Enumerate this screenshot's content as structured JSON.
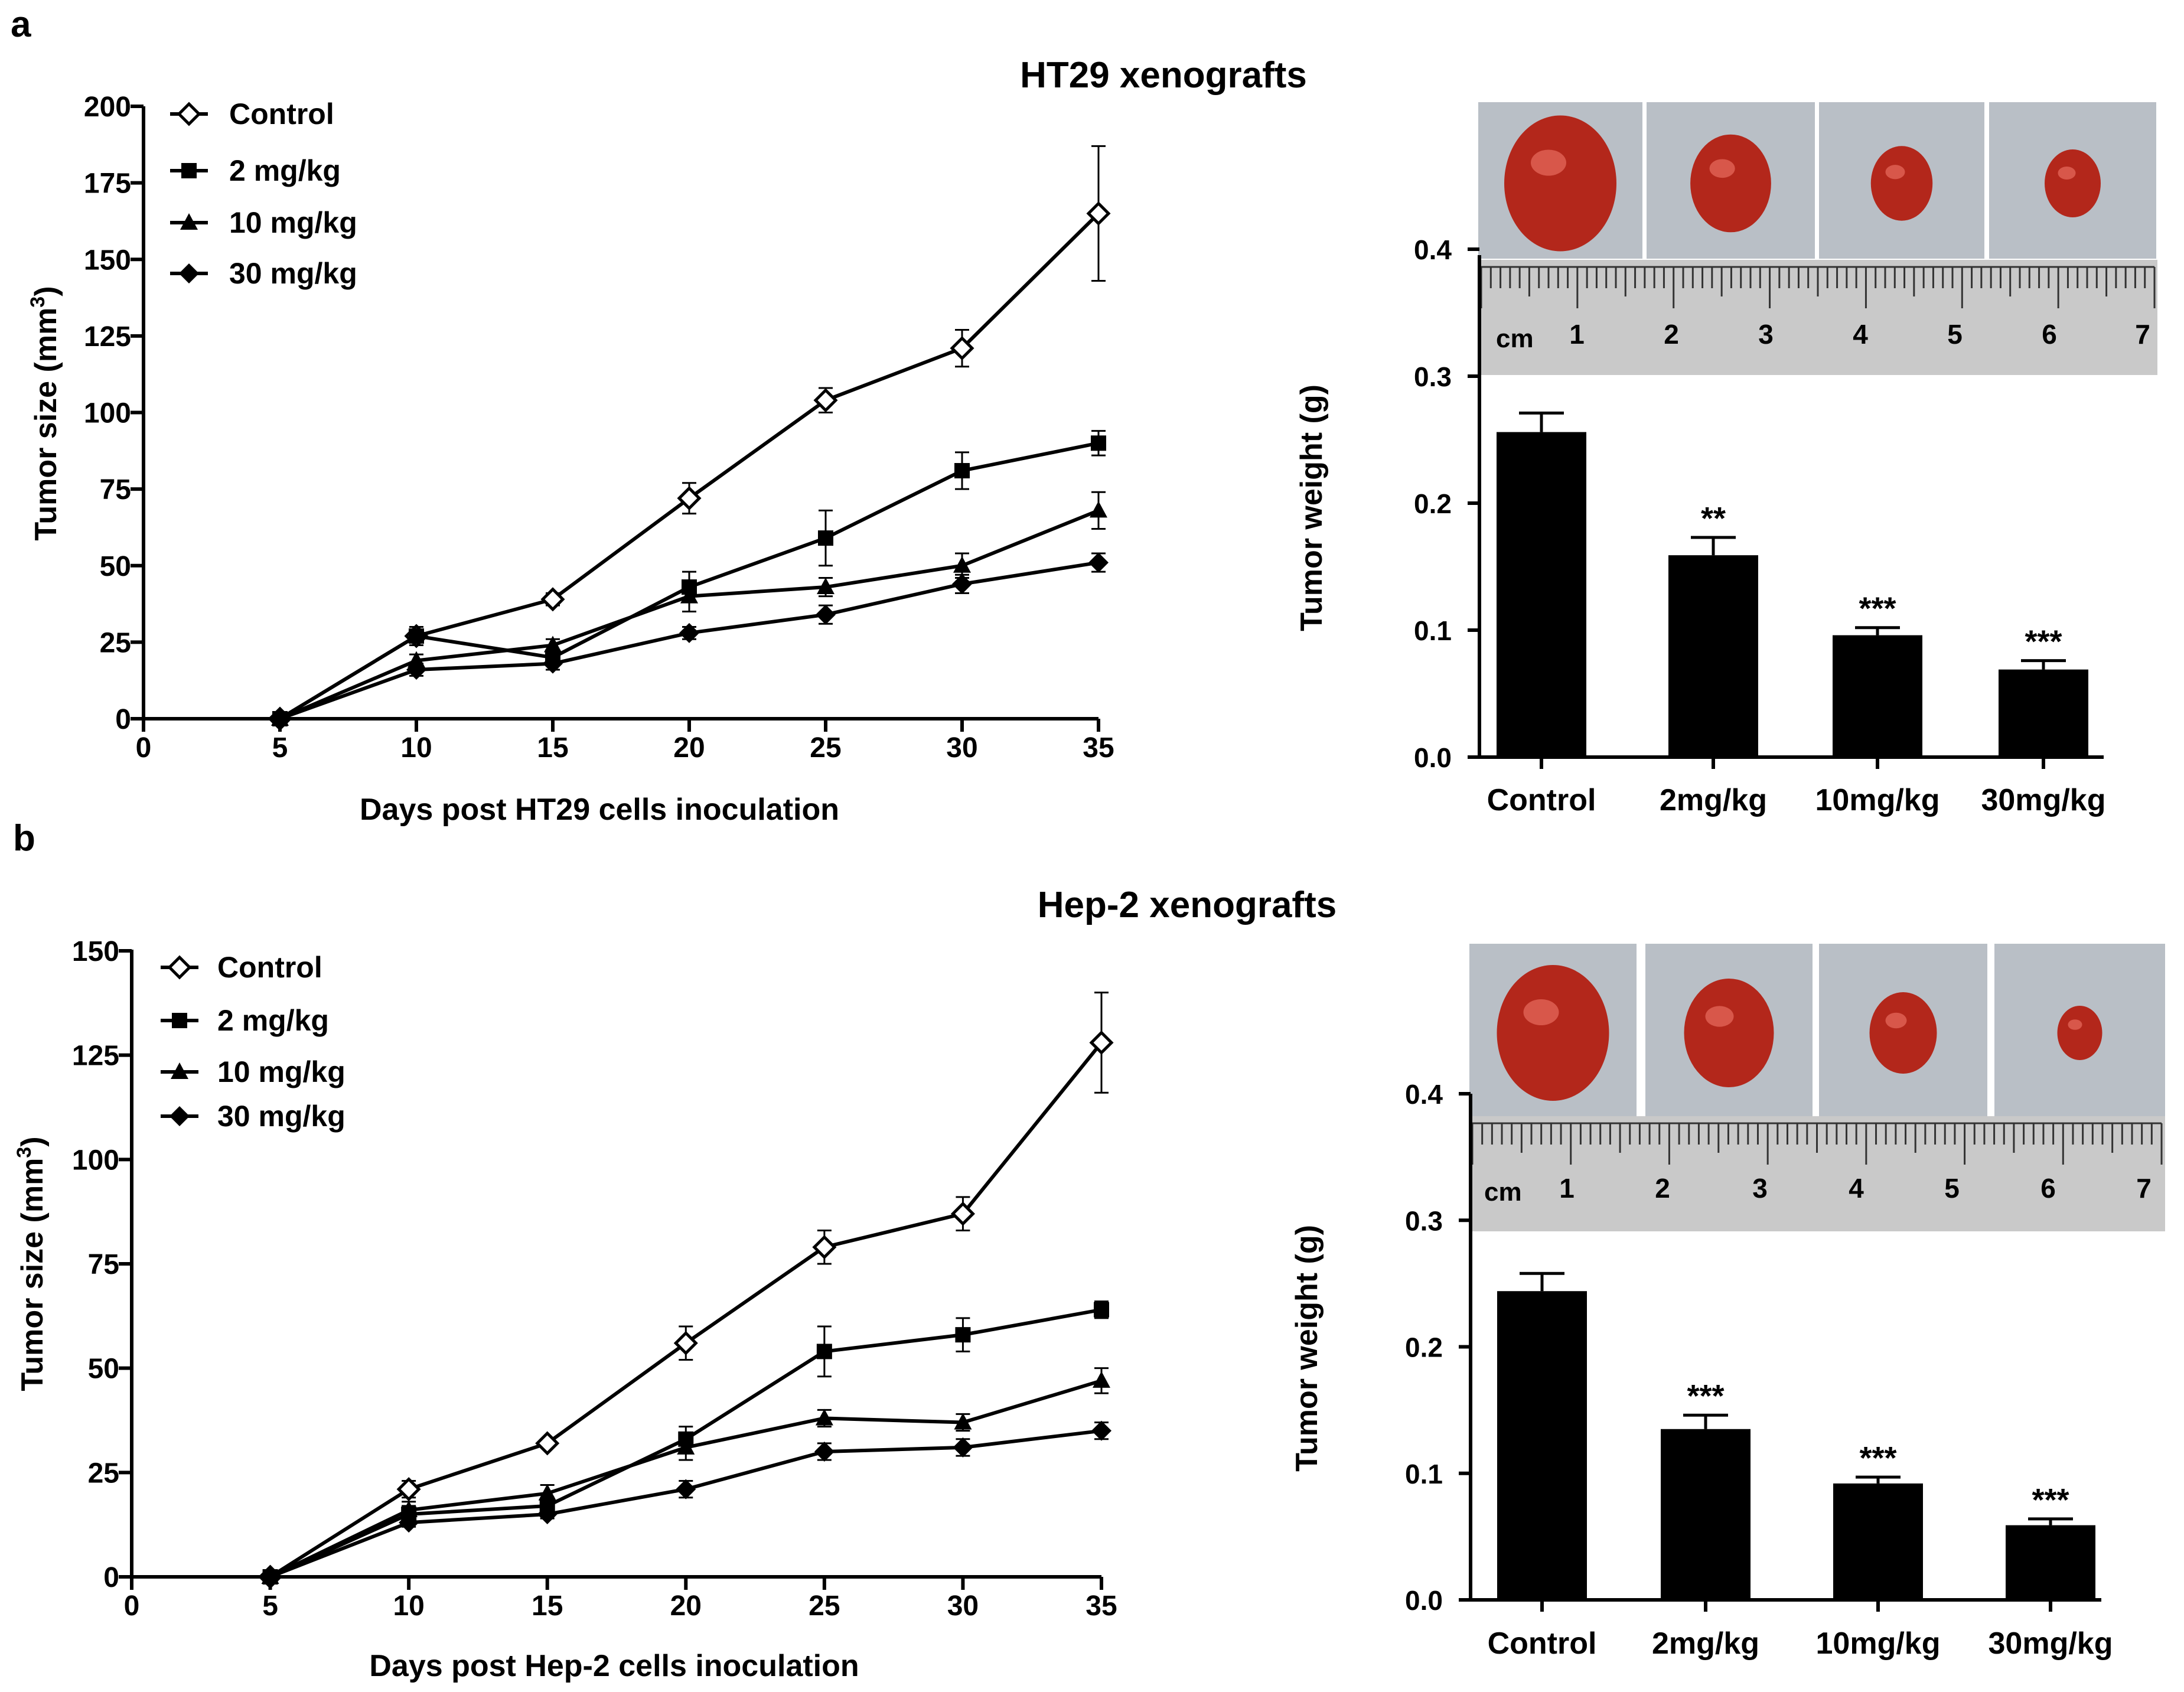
{
  "figure": {
    "background": "#ffffff",
    "ink": "#000000",
    "tumor_color": "#b3271b",
    "photo_bg": "#b9bfc6",
    "ruler_bg": "#c9c9c9"
  },
  "panels": [
    {
      "letter": "a",
      "title": "HT29 xenografts",
      "photo": {
        "ruler_unit": "cm",
        "ruler_numbers": [
          "1",
          "2",
          "3",
          "4",
          "5",
          "6",
          "7"
        ],
        "tumor_sizes": [
          1.0,
          0.72,
          0.55,
          0.5
        ]
      },
      "line_chart": {
        "type": "line",
        "xlabel": "Days post HT29 cells inoculation",
        "ylabel": "Tumor size (mm",
        "ylabel_sup": "3",
        "ylabel_close": ")",
        "xlim": [
          0,
          35
        ],
        "ylim": [
          0,
          200
        ],
        "xticks": [
          0,
          5,
          10,
          15,
          20,
          25,
          30,
          35
        ],
        "yticks": [
          0,
          25,
          50,
          75,
          100,
          125,
          150,
          175,
          200
        ],
        "x": [
          5,
          10,
          15,
          20,
          25,
          30,
          35
        ],
        "series": [
          {
            "name": "Control",
            "marker": "diamond-open",
            "values": [
              0,
              27,
              39,
              72,
              104,
              121,
              165
            ],
            "errors": [
              0,
              3,
              2,
              5,
              4,
              6,
              22
            ]
          },
          {
            "name": "2 mg/kg",
            "marker": "square",
            "values": [
              0,
              27,
              20,
              43,
              59,
              81,
              90
            ],
            "errors": [
              0,
              2,
              2,
              5,
              9,
              6,
              4
            ]
          },
          {
            "name": "10 mg/kg",
            "marker": "triangle",
            "values": [
              0,
              19,
              24,
              40,
              43,
              50,
              68
            ],
            "errors": [
              0,
              2,
              2,
              5,
              3,
              4,
              6
            ]
          },
          {
            "name": "30 mg/kg",
            "marker": "diamond",
            "values": [
              0,
              16,
              18,
              28,
              34,
              44,
              51
            ],
            "errors": [
              0,
              2,
              2,
              2,
              3,
              3,
              3
            ]
          }
        ]
      },
      "bar_chart": {
        "type": "bar",
        "xlabel": "",
        "ylabel": "Tumor weight (g)",
        "ylim": [
          0,
          0.4
        ],
        "yticks": [
          "0.0",
          "0.1",
          "0.2",
          "0.3",
          "0.4"
        ],
        "categories": [
          "Control",
          "2mg/kg",
          "10mg/kg",
          "30mg/kg"
        ],
        "values": [
          0.256,
          0.159,
          0.096,
          0.069
        ],
        "errors": [
          0.015,
          0.014,
          0.006,
          0.007
        ],
        "significance": [
          "",
          "**",
          "***",
          "***"
        ]
      }
    },
    {
      "letter": "b",
      "title": "Hep-2 xenografts",
      "photo": {
        "ruler_unit": "cm",
        "ruler_numbers": [
          "1",
          "2",
          "3",
          "4",
          "5",
          "6",
          "7"
        ],
        "tumor_sizes": [
          1.0,
          0.8,
          0.6,
          0.4
        ]
      },
      "line_chart": {
        "type": "line",
        "xlabel": "Days post Hep-2 cells inoculation",
        "ylabel": "Tumor size (mm",
        "ylabel_sup": "3",
        "ylabel_close": ")",
        "xlim": [
          0,
          35
        ],
        "ylim": [
          0,
          150
        ],
        "xticks": [
          0,
          5,
          10,
          15,
          20,
          25,
          30,
          35
        ],
        "yticks": [
          0,
          25,
          50,
          75,
          100,
          125,
          150
        ],
        "x": [
          5,
          10,
          15,
          20,
          25,
          30,
          35
        ],
        "series": [
          {
            "name": "Control",
            "marker": "diamond-open",
            "values": [
              0,
              21,
              32,
              56,
              79,
              87,
              128
            ],
            "errors": [
              0,
              2,
              1,
              4,
              4,
              4,
              12
            ]
          },
          {
            "name": "2 mg/kg",
            "marker": "square",
            "values": [
              0,
              15,
              17,
              33,
              54,
              58,
              64
            ],
            "errors": [
              0,
              2,
              2,
              3,
              6,
              4,
              2
            ]
          },
          {
            "name": "10 mg/kg",
            "marker": "triangle",
            "values": [
              0,
              16,
              20,
              31,
              38,
              37,
              47
            ],
            "errors": [
              0,
              2,
              2,
              3,
              2,
              2,
              3
            ]
          },
          {
            "name": "30 mg/kg",
            "marker": "diamond",
            "values": [
              0,
              13,
              15,
              21,
              30,
              31,
              35
            ],
            "errors": [
              0,
              1,
              1,
              2,
              2,
              2,
              2
            ]
          }
        ]
      },
      "bar_chart": {
        "type": "bar",
        "xlabel": "",
        "ylabel": "Tumor weight (g)",
        "ylim": [
          0,
          0.4
        ],
        "yticks": [
          "0.0",
          "0.1",
          "0.2",
          "0.3",
          "0.4"
        ],
        "categories": [
          "Control",
          "2mg/kg",
          "10mg/kg",
          "30mg/kg"
        ],
        "values": [
          0.244,
          0.135,
          0.092,
          0.059
        ],
        "errors": [
          0.014,
          0.011,
          0.005,
          0.005
        ],
        "significance": [
          "",
          "***",
          "***",
          "***"
        ]
      }
    }
  ],
  "chart_data": [
    {
      "type": "line",
      "title": "HT29 xenografts",
      "xlabel": "Days post HT29 cells inoculation",
      "ylabel": "Tumor size (mm3)",
      "xlim": [
        0,
        35
      ],
      "ylim": [
        0,
        200
      ],
      "x": [
        5,
        10,
        15,
        20,
        25,
        30,
        35
      ],
      "series": [
        {
          "name": "Control",
          "values": [
            0,
            27,
            39,
            72,
            104,
            121,
            165
          ]
        },
        {
          "name": "2 mg/kg",
          "values": [
            0,
            27,
            20,
            43,
            59,
            81,
            90
          ]
        },
        {
          "name": "10 mg/kg",
          "values": [
            0,
            19,
            24,
            40,
            43,
            50,
            68
          ]
        },
        {
          "name": "30 mg/kg",
          "values": [
            0,
            16,
            18,
            28,
            34,
            44,
            51
          ]
        }
      ]
    },
    {
      "type": "bar",
      "title": "HT29 xenografts",
      "ylabel": "Tumor weight (g)",
      "ylim": [
        0,
        0.4
      ],
      "categories": [
        "Control",
        "2mg/kg",
        "10mg/kg",
        "30mg/kg"
      ],
      "values": [
        0.256,
        0.159,
        0.096,
        0.069
      ]
    },
    {
      "type": "line",
      "title": "Hep-2 xenografts",
      "xlabel": "Days post Hep-2 cells inoculation",
      "ylabel": "Tumor size (mm3)",
      "xlim": [
        0,
        35
      ],
      "ylim": [
        0,
        150
      ],
      "x": [
        5,
        10,
        15,
        20,
        25,
        30,
        35
      ],
      "series": [
        {
          "name": "Control",
          "values": [
            0,
            21,
            32,
            56,
            79,
            87,
            128
          ]
        },
        {
          "name": "2 mg/kg",
          "values": [
            0,
            15,
            17,
            33,
            54,
            58,
            64
          ]
        },
        {
          "name": "10 mg/kg",
          "values": [
            0,
            16,
            20,
            31,
            38,
            37,
            47
          ]
        },
        {
          "name": "30 mg/kg",
          "values": [
            0,
            13,
            15,
            21,
            30,
            31,
            35
          ]
        }
      ]
    },
    {
      "type": "bar",
      "title": "Hep-2 xenografts",
      "ylabel": "Tumor weight (g)",
      "ylim": [
        0,
        0.4
      ],
      "categories": [
        "Control",
        "2mg/kg",
        "10mg/kg",
        "30mg/kg"
      ],
      "values": [
        0.244,
        0.135,
        0.092,
        0.059
      ]
    }
  ]
}
